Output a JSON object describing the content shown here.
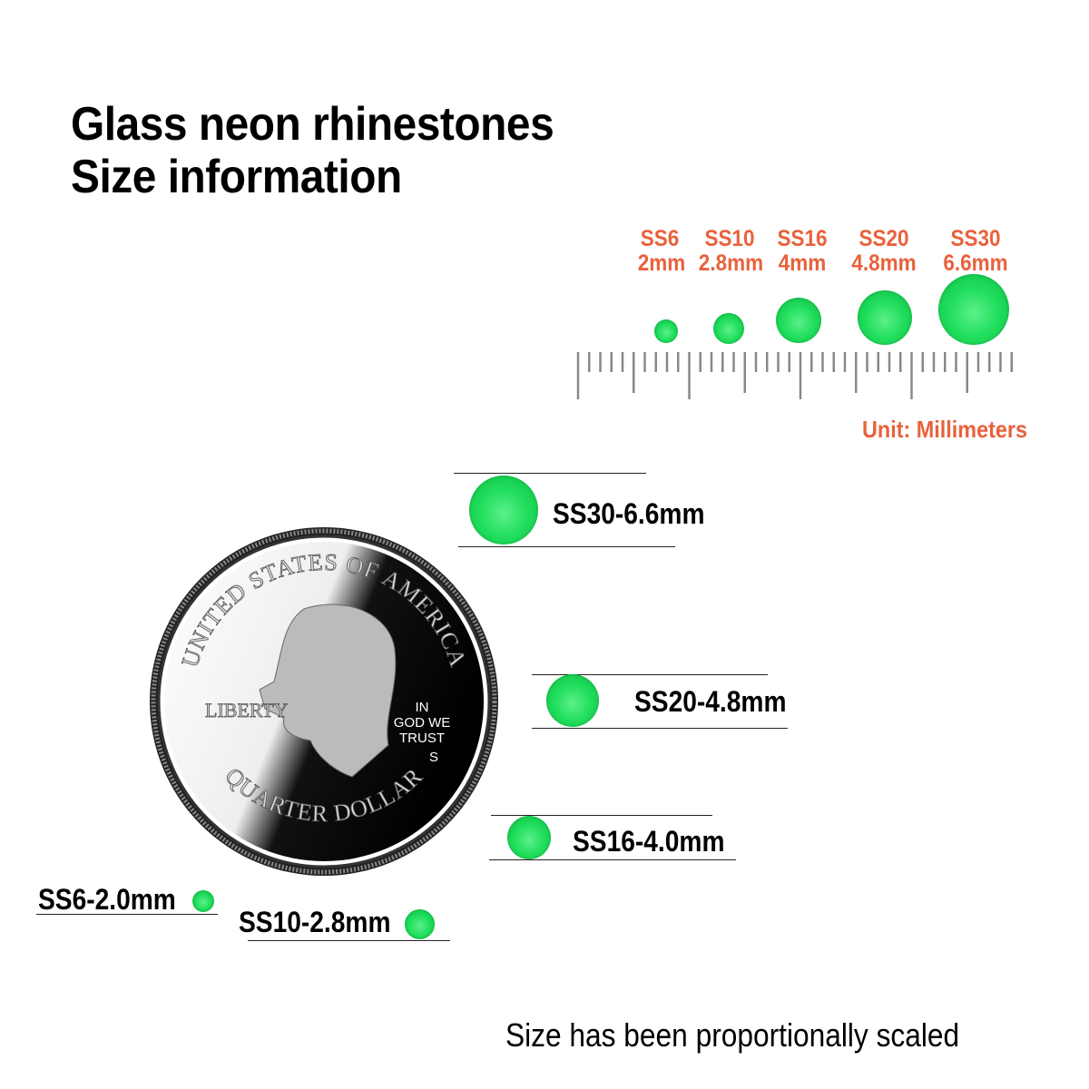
{
  "title": {
    "line1": "Glass neon rhinestones",
    "line2": "Size information"
  },
  "scale_chart": {
    "sizes": [
      {
        "code": "SS6",
        "size": "2mm",
        "diameter_mm": 2.0
      },
      {
        "code": "SS10",
        "size": "2.8mm",
        "diameter_mm": 2.8
      },
      {
        "code": "SS16",
        "size": "4mm",
        "diameter_mm": 4.0
      },
      {
        "code": "SS20",
        "size": "4.8mm",
        "diameter_mm": 4.8
      },
      {
        "code": "SS30",
        "size": "6.6mm",
        "diameter_mm": 6.6
      }
    ],
    "unit_label": "Unit: Millimeters"
  },
  "comparison": {
    "labels": {
      "ss30": "SS30-6.6mm",
      "ss20": "SS20-4.8mm",
      "ss16": "SS16-4.0mm",
      "ss6": "SS6-2.0mm",
      "ss10": "SS10-2.8mm"
    },
    "coin": {
      "top": "UNITED STATES OF AMERICA",
      "bottom": "QUARTER DOLLAR",
      "liberty": "LIBERTY",
      "motto1": "IN",
      "motto2": "GOD WE",
      "motto3": "TRUST",
      "mint": "S"
    }
  },
  "footer": "Size has been proportionally scaled",
  "colors": {
    "accent": "#e8623c",
    "gem": "#22df5e"
  }
}
